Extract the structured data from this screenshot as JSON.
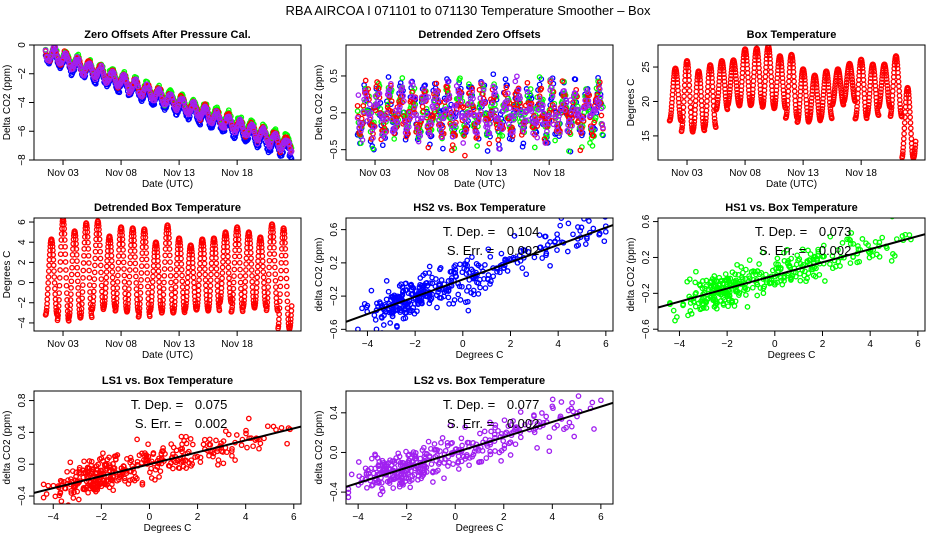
{
  "figure": {
    "title": "RBA   AIRCOA I   071101 to 071130   Temperature Smoother – Box"
  },
  "chart_data": [
    {
      "id": "zero-offsets",
      "type": "scatter",
      "title": "Zero Offsets After Pressure Cal.",
      "xlabel": "Date (UTC)",
      "ylabel": "Delta CO2 (ppm)",
      "x_ticks": [
        "Nov 03",
        "Nov 08",
        "Nov 13",
        "Nov 18"
      ],
      "x_tick_days": [
        3,
        8,
        13,
        18
      ],
      "xlim_days": [
        0.5,
        23.5
      ],
      "y_ticks": [
        0,
        -2,
        -4,
        -6,
        -8
      ],
      "ylim": [
        -8,
        0
      ],
      "series": [
        {
          "name": "HS2",
          "color": "#0000ff",
          "trend_start": -0.7,
          "trend_end": -7.5,
          "amplitude": 0.5
        },
        {
          "name": "HS1",
          "color": "#00ff00",
          "trend_start": -0.4,
          "trend_end": -6.8,
          "amplitude": 0.45
        },
        {
          "name": "LS1",
          "color": "#ff0000",
          "trend_start": -0.5,
          "trend_end": -7.0,
          "amplitude": 0.45
        },
        {
          "name": "LS2",
          "color": "#a020f0",
          "trend_start": -0.55,
          "trend_end": -7.1,
          "amplitude": 0.45
        }
      ],
      "start_day": 1.5,
      "end_day": 22.7
    },
    {
      "id": "detrended-zero-offsets",
      "type": "scatter",
      "title": "Detrended Zero Offsets",
      "xlabel": "Date (UTC)",
      "ylabel": "Delta CO2 (ppm)",
      "x_ticks": [
        "Nov 03",
        "Nov 08",
        "Nov 13",
        "Nov 18"
      ],
      "x_tick_days": [
        3,
        8,
        13,
        18
      ],
      "xlim_days": [
        0.5,
        23.5
      ],
      "y_ticks": [
        -0.5,
        0.0,
        0.5
      ],
      "y_tick_labels": [
        "-0.5",
        "0.0",
        "0.5"
      ],
      "ylim": [
        -0.64,
        0.92
      ],
      "series": [
        {
          "name": "HS2",
          "color": "#0000ff",
          "amplitude": 0.45
        },
        {
          "name": "HS1",
          "color": "#00ff00",
          "amplitude": 0.35
        },
        {
          "name": "LS1",
          "color": "#ff0000",
          "amplitude": 0.35
        },
        {
          "name": "LS2",
          "color": "#a020f0",
          "amplitude": 0.3
        }
      ],
      "start_day": 1.5,
      "end_day": 22.7
    },
    {
      "id": "box-temperature",
      "type": "scatter",
      "title": "Box Temperature",
      "xlabel": "Date (UTC)",
      "ylabel": "Degrees C",
      "x_ticks": [
        "Nov 03",
        "Nov 08",
        "Nov 13",
        "Nov 18"
      ],
      "x_tick_days": [
        3,
        8,
        13,
        18
      ],
      "xlim_days": [
        0.5,
        23.5
      ],
      "y_ticks": [
        15,
        20,
        25
      ],
      "ylim": [
        11.5,
        28.2
      ],
      "series": [
        {
          "name": "Box Temperature",
          "color": "#ff0000"
        }
      ],
      "daily_min": [
        17.2,
        15.6,
        15.8,
        16.2,
        18.8,
        19.5,
        19.4,
        19.5,
        19.2,
        19.0,
        17.6,
        17.0,
        17.2,
        17.5,
        19.5,
        20.0,
        17.5,
        18.0,
        19.2,
        17.8,
        11.8
      ],
      "daily_max": [
        24.8,
        25.9,
        24.4,
        25.3,
        25.9,
        26.0,
        27.6,
        27.7,
        28.0,
        26.6,
        26.8,
        24.7,
        23.8,
        24.4,
        24.7,
        25.5,
        26.1,
        25.4,
        25.4,
        26.6,
        22.0,
        18.7
      ],
      "start_day": 1.5,
      "end_day": 22.7
    },
    {
      "id": "detrended-box-temperature",
      "type": "scatter",
      "title": "Detrended Box Temperature",
      "xlabel": "Date (UTC)",
      "ylabel": "Degrees C",
      "x_ticks": [
        "Nov 03",
        "Nov 08",
        "Nov 13",
        "Nov 18"
      ],
      "x_tick_days": [
        3,
        8,
        13,
        18
      ],
      "xlim_days": [
        0.5,
        23.5
      ],
      "y_ticks": [
        -4,
        -2,
        0,
        2,
        4,
        6
      ],
      "ylim": [
        -4.8,
        6.4
      ],
      "series": [
        {
          "name": "Detrended Box Temperature",
          "color": "#ff0000"
        }
      ],
      "daily_min": [
        -3.2,
        -3.8,
        -3.5,
        -3.5,
        -2.7,
        -2.5,
        -2.8,
        -2.9,
        -3.4,
        -2.8,
        -3.0,
        -3.0,
        -2.7,
        -2.7,
        -2.8,
        -2.0,
        -2.9,
        -2.5,
        -2.4,
        -2.8,
        -4.6
      ],
      "daily_max": [
        4.3,
        6.3,
        5.1,
        5.9,
        6.1,
        4.6,
        5.5,
        5.4,
        5.3,
        4.0,
        5.7,
        4.4,
        3.7,
        4.3,
        4.4,
        5.0,
        5.5,
        5.0,
        4.5,
        5.8,
        5.4,
        2.0
      ],
      "start_day": 1.5,
      "end_day": 22.7
    },
    {
      "id": "hs2-vs-box",
      "type": "scatter",
      "title": "HS2 vs. Box Temperature",
      "xlabel": "Degrees C",
      "ylabel": "delta CO2 (ppm)",
      "x_ticks": [
        -4,
        -2,
        0,
        2,
        4,
        6
      ],
      "xlim": [
        -4.9,
        6.3
      ],
      "y_ticks": [
        -0.6,
        -0.2,
        0.2,
        0.6
      ],
      "y_tick_labels": [
        "-0.6",
        "-0.2",
        "0.2",
        "0.6"
      ],
      "ylim": [
        -0.62,
        0.74
      ],
      "color": "#0000ff",
      "slope": 0.104,
      "intercept": 0.0,
      "spread": 0.12,
      "annotation": {
        "t_dep_label": "T. Dep. =",
        "t_dep": "0.104",
        "s_err_label": "S. Err. =",
        "s_err": "0.002"
      }
    },
    {
      "id": "hs1-vs-box",
      "type": "scatter",
      "title": "HS1 vs. Box Temperature",
      "xlabel": "Degrees C",
      "ylabel": "delta CO2 (ppm)",
      "x_ticks": [
        -4,
        -2,
        0,
        2,
        4,
        6
      ],
      "xlim": [
        -4.9,
        6.3
      ],
      "y_ticks": [
        -0.6,
        -0.2,
        0.2,
        0.6
      ],
      "y_tick_labels": [
        "-0.6",
        "-0.2",
        "0.2",
        "0.6"
      ],
      "ylim": [
        -0.62,
        0.64
      ],
      "color": "#00ff00",
      "slope": 0.073,
      "intercept": 0.0,
      "spread": 0.1,
      "annotation": {
        "t_dep_label": "T. Dep. =",
        "t_dep": "0.073",
        "s_err_label": "S. Err. =",
        "s_err": "0.002"
      }
    },
    {
      "id": "ls1-vs-box",
      "type": "scatter",
      "title": "LS1 vs. Box Temperature",
      "xlabel": "Degrees C",
      "ylabel": "delta CO2 (ppm)",
      "x_ticks": [
        -4,
        -2,
        0,
        2,
        4,
        6
      ],
      "xlim": [
        -4.8,
        6.3
      ],
      "y_ticks": [
        -0.4,
        0.0,
        0.4,
        0.8
      ],
      "y_tick_labels": [
        "-0.4",
        "0.0",
        "0.4",
        "0.8"
      ],
      "ylim": [
        -0.5,
        0.92
      ],
      "color": "#ff0000",
      "slope": 0.075,
      "intercept": 0.0,
      "spread": 0.11,
      "annotation": {
        "t_dep_label": "T. Dep. =",
        "t_dep": "0.075",
        "s_err_label": "S. Err. =",
        "s_err": "0.002"
      }
    },
    {
      "id": "ls2-vs-box",
      "type": "scatter",
      "title": "LS2 vs. Box Temperature",
      "xlabel": "Degrees C",
      "ylabel": "delta CO2 (ppm)",
      "x_ticks": [
        -4,
        -2,
        0,
        2,
        4,
        6
      ],
      "xlim": [
        -4.5,
        6.5
      ],
      "y_ticks": [
        -0.4,
        0.0,
        0.4
      ],
      "y_tick_labels": [
        "-0.4",
        "0.0",
        "0.4"
      ],
      "ylim": [
        -0.52,
        0.62
      ],
      "color": "#a020f0",
      "slope": 0.077,
      "intercept": 0.0,
      "spread": 0.1,
      "annotation": {
        "t_dep_label": "T. Dep. =",
        "t_dep": "0.077",
        "s_err_label": "S. Err. =",
        "s_err": "0.002"
      }
    }
  ]
}
